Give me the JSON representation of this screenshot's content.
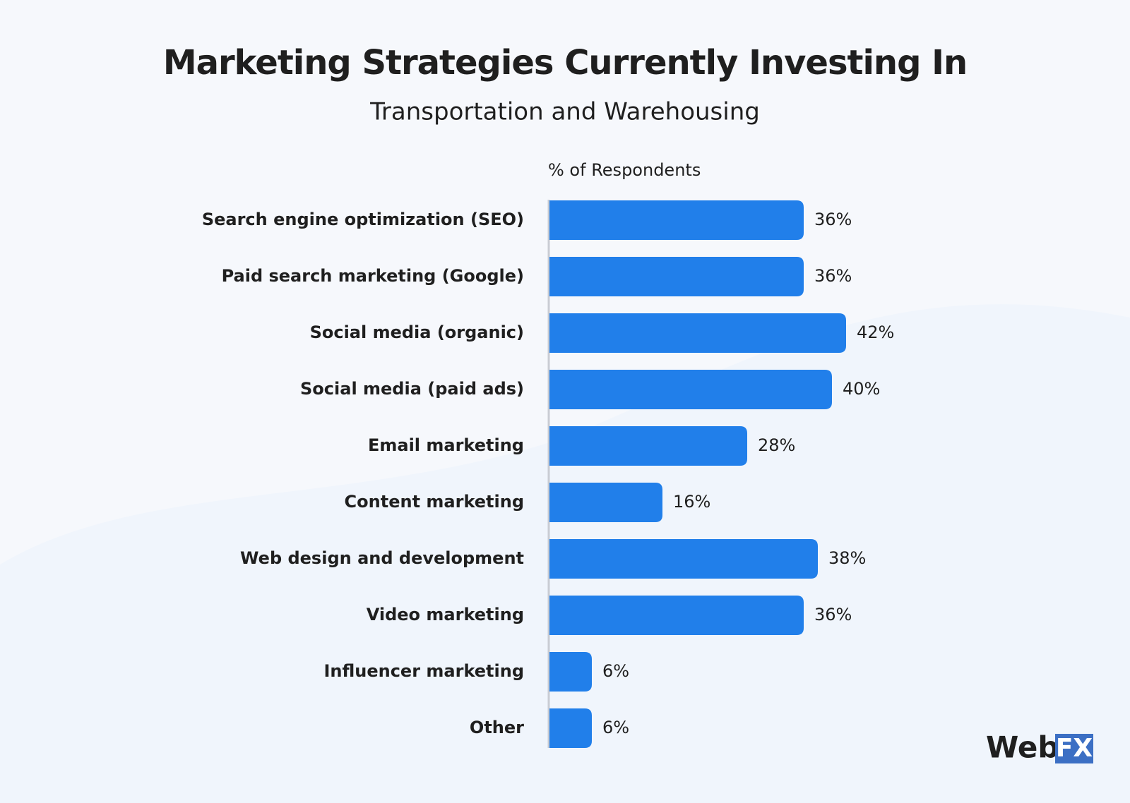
{
  "chart_data": {
    "type": "hbar",
    "title": "Marketing Strategies Currently Investing In",
    "subtitle": "Transportation and Warehousing",
    "axis_label": "% of Respondents",
    "categories": [
      "Search engine optimization (SEO)",
      "Paid search marketing (Google)",
      "Social media (organic)",
      "Social media (paid ads)",
      "Email marketing",
      "Content marketing",
      "Web design and development",
      "Video marketing",
      "Influencer marketing",
      "Other"
    ],
    "values": [
      36,
      36,
      42,
      40,
      28,
      16,
      38,
      36,
      6,
      6
    ],
    "value_labels": [
      "36%",
      "36%",
      "42%",
      "40%",
      "28%",
      "16%",
      "38%",
      "36%",
      "6%",
      "6%"
    ],
    "color": "#217fea"
  },
  "logo": {
    "word": "Web",
    "badge": "FX"
  }
}
